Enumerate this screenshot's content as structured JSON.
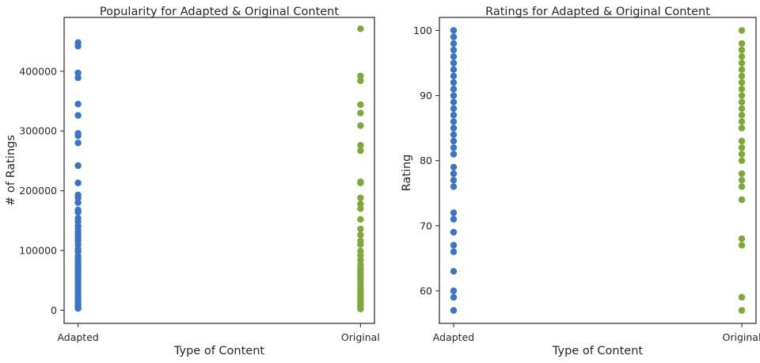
{
  "colors": {
    "adapted": "#3a74c6",
    "original": "#7fa83a",
    "text": "#262626"
  },
  "chart_data": [
    {
      "type": "scatter",
      "title": "Popularity for Adapted & Original Content",
      "xlabel": "Type of Content",
      "ylabel": "# of Ratings",
      "categories": [
        "Adapted",
        "Original"
      ],
      "ylim": [
        -22000,
        490000
      ],
      "yticks": [
        0,
        100000,
        200000,
        300000,
        400000
      ],
      "ytick_labels": [
        "0",
        "100000",
        "200000",
        "300000",
        "400000"
      ],
      "grid": false,
      "series": [
        {
          "category": "Adapted",
          "color_key": "adapted",
          "values": [
            448000,
            442000,
            397000,
            389000,
            345000,
            326000,
            296000,
            292000,
            280000,
            242000,
            213000,
            193000,
            188000,
            180000,
            168000,
            164000,
            154000,
            148000,
            141000,
            136000,
            131000,
            126000,
            121000,
            116000,
            110000,
            103000,
            98000,
            91000,
            87000,
            82000,
            78000,
            74000,
            70000,
            66000,
            62000,
            58000,
            53000,
            49000,
            44000,
            40000,
            36000,
            32000,
            28000,
            24000,
            20000,
            16000,
            12000,
            9000,
            6000,
            3000
          ]
        },
        {
          "category": "Original",
          "color_key": "original",
          "values": [
            471000,
            392000,
            384000,
            344000,
            330000,
            309000,
            276000,
            267000,
            215000,
            213000,
            188000,
            178000,
            170000,
            152000,
            136000,
            126000,
            116000,
            110000,
            99000,
            92000,
            84000,
            77000,
            71000,
            67000,
            62000,
            57000,
            52000,
            46000,
            41000,
            36000,
            31000,
            27000,
            23000,
            19000,
            15000,
            11000,
            8000,
            5000,
            2000
          ]
        }
      ]
    },
    {
      "type": "scatter",
      "title": "Ratings for Adapted & Original Content",
      "xlabel": "Type of Content",
      "ylabel": "Rating",
      "categories": [
        "Adapted",
        "Original"
      ],
      "ylim": [
        55,
        102
      ],
      "yticks": [
        60,
        70,
        80,
        90,
        100
      ],
      "ytick_labels": [
        "60",
        "70",
        "80",
        "90",
        "100"
      ],
      "grid": false,
      "series": [
        {
          "category": "Adapted",
          "color_key": "adapted",
          "values": [
            100,
            99,
            98,
            97,
            96,
            95,
            94,
            93,
            92,
            91,
            90,
            89,
            88,
            87,
            86,
            85,
            84,
            83,
            82,
            81,
            79,
            78,
            77,
            76,
            72,
            71,
            69,
            67,
            66,
            63,
            60,
            59,
            57
          ]
        },
        {
          "category": "Original",
          "color_key": "original",
          "values": [
            100,
            98,
            97,
            96,
            95,
            94,
            93,
            92,
            91,
            90,
            89,
            88,
            87,
            86,
            85,
            83,
            82,
            81,
            80,
            78,
            77,
            76,
            74,
            68,
            67,
            59,
            57
          ]
        }
      ]
    }
  ]
}
